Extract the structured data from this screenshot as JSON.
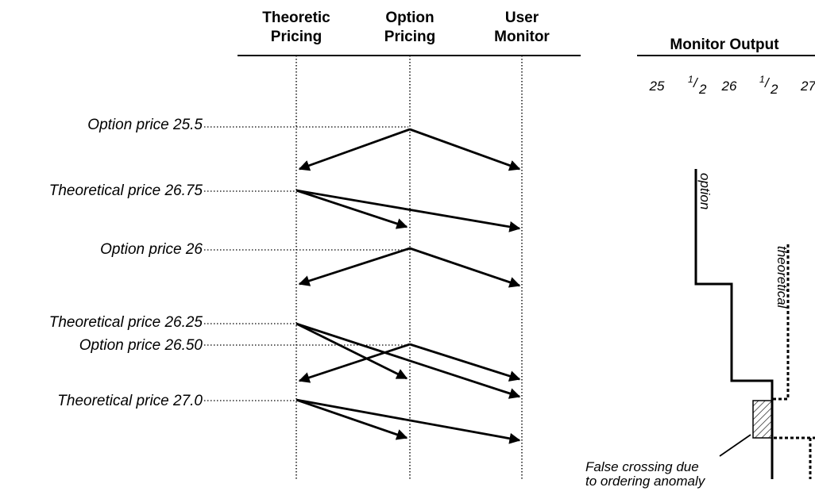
{
  "headers": {
    "col1_line1": "Theoretic",
    "col1_line2": "Pricing",
    "col2_line1": "Option",
    "col2_line2": "Pricing",
    "col3_line1": "User",
    "col3_line2": "Monitor",
    "monitor_output": "Monitor Output"
  },
  "scale": {
    "t25": "25",
    "t26": "26",
    "t27": "27",
    "frac_num": "1",
    "frac_sep": "/",
    "frac_den": "2"
  },
  "events": [
    "Option price 25.5",
    "Theoretical price 26.75",
    "Option price 26",
    "Theoretical price 26.25",
    "Option price 26.50",
    "Theoretical price 27.0"
  ],
  "series": {
    "option": "option",
    "theoretical": "theoretical"
  },
  "note": {
    "line1": "False crossing due",
    "line2": "to ordering anomaly"
  }
}
